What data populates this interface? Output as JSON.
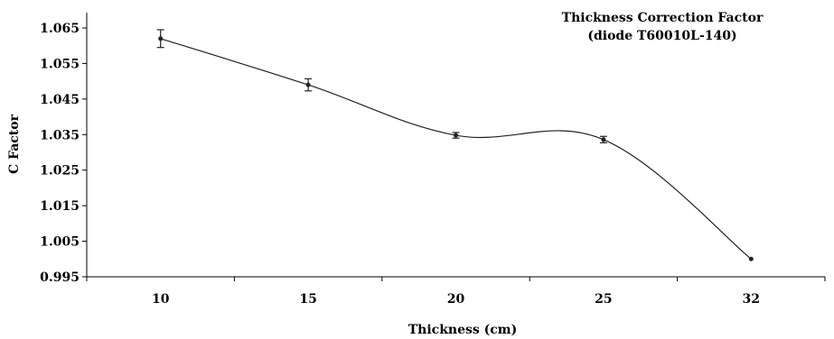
{
  "chart_data": {
    "type": "line",
    "title": "Thickness Correction Factor",
    "subtitle": "(diode T60010L-140)",
    "xlabel": "Thickness (cm)",
    "ylabel": "C Factor",
    "categories": [
      "10",
      "15",
      "20",
      "25",
      "32"
    ],
    "ylim": [
      0.995,
      1.069
    ],
    "yticks": [
      "1.065",
      "1.055",
      "1.045",
      "1.035",
      "1.025",
      "1.015",
      "1.005",
      "0.995"
    ],
    "ytick_values": [
      1.065,
      1.055,
      1.045,
      1.035,
      1.025,
      1.015,
      1.005,
      0.995
    ],
    "grid": false,
    "series": [
      {
        "values": [
          1.062,
          1.049,
          1.0348,
          1.0336,
          1.0
        ],
        "errors": [
          0.0025,
          0.0017,
          0.0008,
          0.0009,
          0.0
        ]
      }
    ]
  }
}
